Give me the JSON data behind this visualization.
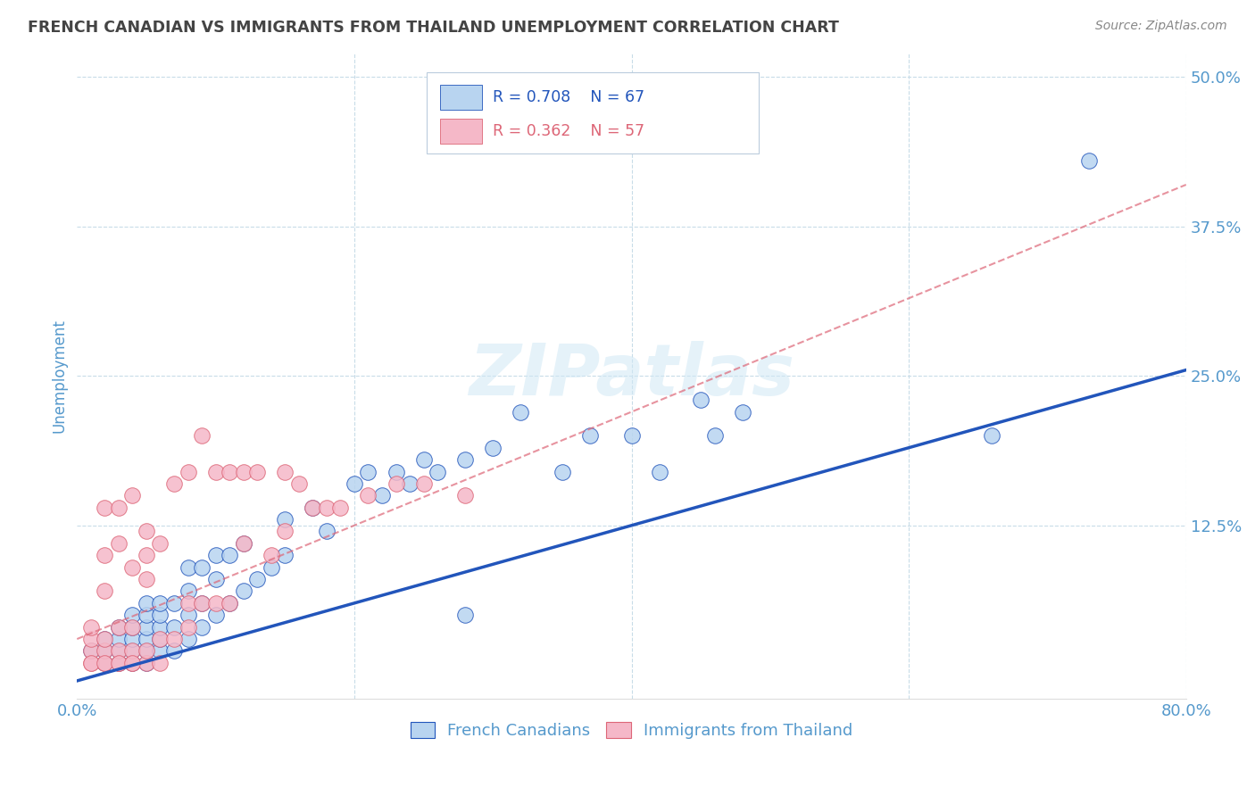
{
  "title": "FRENCH CANADIAN VS IMMIGRANTS FROM THAILAND UNEMPLOYMENT CORRELATION CHART",
  "source": "Source: ZipAtlas.com",
  "ylabel": "Unemployment",
  "xlim": [
    0.0,
    0.8
  ],
  "ylim": [
    -0.02,
    0.52
  ],
  "xticks": [
    0.0,
    0.2,
    0.4,
    0.6,
    0.8
  ],
  "xticklabels": [
    "0.0%",
    "",
    "",
    "",
    "80.0%"
  ],
  "yticks": [
    0.0,
    0.125,
    0.25,
    0.375,
    0.5
  ],
  "yticklabels": [
    "",
    "12.5%",
    "25.0%",
    "37.5%",
    "50.0%"
  ],
  "legend_entry1": {
    "R": "0.708",
    "N": "67",
    "label": "French Canadians"
  },
  "legend_entry2": {
    "R": "0.362",
    "N": "57",
    "label": "Immigrants from Thailand"
  },
  "watermark": "ZIPatlas",
  "blue_scatter_color": "#b8d4f0",
  "pink_scatter_color": "#f5b8c8",
  "blue_line_color": "#2255bb",
  "pink_line_color": "#dd6677",
  "grid_color": "#c8dce8",
  "axis_color": "#5599cc",
  "title_color": "#444444",
  "blue_scatter_x": [
    0.01,
    0.02,
    0.02,
    0.02,
    0.03,
    0.03,
    0.03,
    0.03,
    0.04,
    0.04,
    0.04,
    0.04,
    0.04,
    0.05,
    0.05,
    0.05,
    0.05,
    0.05,
    0.05,
    0.06,
    0.06,
    0.06,
    0.06,
    0.06,
    0.07,
    0.07,
    0.07,
    0.08,
    0.08,
    0.08,
    0.08,
    0.09,
    0.09,
    0.09,
    0.1,
    0.1,
    0.1,
    0.11,
    0.11,
    0.12,
    0.12,
    0.13,
    0.14,
    0.15,
    0.15,
    0.17,
    0.18,
    0.2,
    0.21,
    0.22,
    0.23,
    0.24,
    0.25,
    0.26,
    0.28,
    0.28,
    0.3,
    0.32,
    0.35,
    0.37,
    0.4,
    0.42,
    0.45,
    0.46,
    0.48,
    0.66,
    0.73
  ],
  "blue_scatter_y": [
    0.02,
    0.01,
    0.02,
    0.03,
    0.01,
    0.02,
    0.03,
    0.04,
    0.01,
    0.02,
    0.03,
    0.04,
    0.05,
    0.01,
    0.02,
    0.03,
    0.04,
    0.05,
    0.06,
    0.02,
    0.03,
    0.04,
    0.05,
    0.06,
    0.02,
    0.04,
    0.06,
    0.03,
    0.05,
    0.07,
    0.09,
    0.04,
    0.06,
    0.09,
    0.05,
    0.08,
    0.1,
    0.06,
    0.1,
    0.07,
    0.11,
    0.08,
    0.09,
    0.1,
    0.13,
    0.14,
    0.12,
    0.16,
    0.17,
    0.15,
    0.17,
    0.16,
    0.18,
    0.17,
    0.05,
    0.18,
    0.19,
    0.22,
    0.17,
    0.2,
    0.2,
    0.17,
    0.23,
    0.2,
    0.22,
    0.2,
    0.43
  ],
  "pink_scatter_x": [
    0.01,
    0.01,
    0.01,
    0.01,
    0.02,
    0.02,
    0.02,
    0.02,
    0.02,
    0.02,
    0.03,
    0.03,
    0.03,
    0.03,
    0.03,
    0.04,
    0.04,
    0.04,
    0.04,
    0.04,
    0.05,
    0.05,
    0.05,
    0.05,
    0.05,
    0.06,
    0.06,
    0.06,
    0.07,
    0.07,
    0.08,
    0.08,
    0.08,
    0.09,
    0.09,
    0.1,
    0.1,
    0.11,
    0.11,
    0.12,
    0.12,
    0.13,
    0.14,
    0.15,
    0.15,
    0.16,
    0.17,
    0.18,
    0.19,
    0.21,
    0.23,
    0.25,
    0.28,
    0.01,
    0.02,
    0.03,
    0.04
  ],
  "pink_scatter_y": [
    0.01,
    0.02,
    0.03,
    0.04,
    0.01,
    0.02,
    0.03,
    0.07,
    0.1,
    0.14,
    0.01,
    0.02,
    0.04,
    0.11,
    0.14,
    0.01,
    0.02,
    0.04,
    0.09,
    0.15,
    0.01,
    0.02,
    0.08,
    0.1,
    0.12,
    0.01,
    0.03,
    0.11,
    0.03,
    0.16,
    0.04,
    0.06,
    0.17,
    0.06,
    0.2,
    0.06,
    0.17,
    0.06,
    0.17,
    0.11,
    0.17,
    0.17,
    0.1,
    0.12,
    0.17,
    0.16,
    0.14,
    0.14,
    0.14,
    0.15,
    0.16,
    0.16,
    0.15,
    0.01,
    0.01,
    0.01,
    0.01
  ],
  "blue_line_x0": 0.0,
  "blue_line_y0": -0.005,
  "blue_line_x1": 0.8,
  "blue_line_y1": 0.255,
  "pink_line_x0": 0.0,
  "pink_line_y0": 0.03,
  "pink_line_x1": 0.8,
  "pink_line_y1": 0.41
}
